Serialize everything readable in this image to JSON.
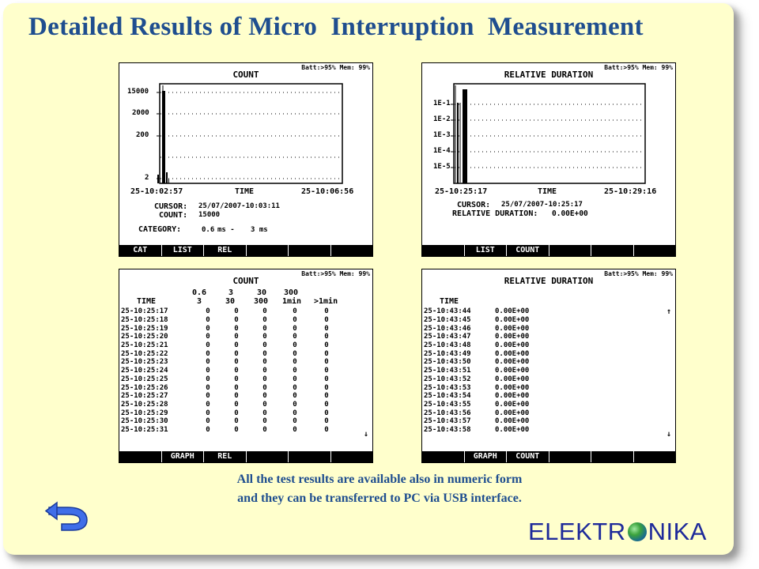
{
  "slide": {
    "title": "Detailed Results of Micro  Interruption  Measurement",
    "caption_line1": "All the test results are available  also in numeric form",
    "caption_line2": "and they can be transferred to PC via USB interface.",
    "logo_left": "ELEKTR",
    "logo_right": "NIKA",
    "back_icon": "back-arrow-icon",
    "colors": {
      "background": "#ffffcc",
      "title": "#1f4e8f",
      "logo": "#1e2a9a"
    }
  },
  "header": "Batt:>95% Mem: 99%",
  "count_graph": {
    "title": "COUNT",
    "y_ticks": [
      "15000",
      "2000",
      "200",
      "2"
    ],
    "x_start": "25-10:02:57",
    "x_mid": "TIME",
    "x_end": "25-10:06:56",
    "cursor_label": "CURSOR:",
    "cursor_value": "25/07/2007-10:03:11",
    "count_label": "COUNT:",
    "count_value": "15000",
    "category_label": "CATEGORY:",
    "category_from": "0.6",
    "category_mid": "ms -",
    "category_to": "3 ms",
    "fkeys": [
      "CAT",
      "LIST",
      "REL",
      "",
      "",
      ""
    ]
  },
  "reldur_graph": {
    "title": "RELATIVE DURATION",
    "y_ticks": [
      "1E-1",
      "1E-2",
      "1E-3",
      "1E-4",
      "1E-5"
    ],
    "x_start": "25-10:25:17",
    "x_mid": "TIME",
    "x_end": "25-10:29:16",
    "cursor_label": "CURSOR:",
    "cursor_value": "25/07/2007-10:25:17",
    "rel_label": "RELATIVE DURATION:",
    "rel_value": "0.00E+00",
    "fkeys": [
      "",
      "LIST",
      "COUNT",
      "",
      "",
      ""
    ]
  },
  "count_list": {
    "title": "COUNT",
    "time_header": "TIME",
    "columns_top": [
      "0.6",
      "3",
      "30",
      "300",
      ""
    ],
    "columns_bottom": [
      "3",
      "30",
      "300",
      "1min",
      ">1min"
    ],
    "rows": [
      [
        "25-10:25:17",
        "0",
        "0",
        "0",
        "0",
        "0"
      ],
      [
        "25-10:25:18",
        "0",
        "0",
        "0",
        "0",
        "0"
      ],
      [
        "25-10:25:19",
        "0",
        "0",
        "0",
        "0",
        "0"
      ],
      [
        "25-10:25:20",
        "0",
        "0",
        "0",
        "0",
        "0"
      ],
      [
        "25-10:25:21",
        "0",
        "0",
        "0",
        "0",
        "0"
      ],
      [
        "25-10:25:22",
        "0",
        "0",
        "0",
        "0",
        "0"
      ],
      [
        "25-10:25:23",
        "0",
        "0",
        "0",
        "0",
        "0"
      ],
      [
        "25-10:25:24",
        "0",
        "0",
        "0",
        "0",
        "0"
      ],
      [
        "25-10:25:25",
        "0",
        "0",
        "0",
        "0",
        "0"
      ],
      [
        "25-10:25:26",
        "0",
        "0",
        "0",
        "0",
        "0"
      ],
      [
        "25-10:25:27",
        "0",
        "0",
        "0",
        "0",
        "0"
      ],
      [
        "25-10:25:28",
        "0",
        "0",
        "0",
        "0",
        "0"
      ],
      [
        "25-10:25:29",
        "0",
        "0",
        "0",
        "0",
        "0"
      ],
      [
        "25-10:25:30",
        "0",
        "0",
        "0",
        "0",
        "0"
      ],
      [
        "25-10:25:31",
        "0",
        "0",
        "0",
        "0",
        "0"
      ]
    ],
    "scroll_down": "↓",
    "fkeys": [
      "",
      "GRAPH",
      "REL",
      "",
      "",
      ""
    ]
  },
  "reldur_list": {
    "title": "RELATIVE DURATION",
    "time_header": "TIME",
    "rows": [
      [
        "25-10:43:44",
        "0.00E+00"
      ],
      [
        "25-10:43:45",
        "0.00E+00"
      ],
      [
        "25-10:43:46",
        "0.00E+00"
      ],
      [
        "25-10:43:47",
        "0.00E+00"
      ],
      [
        "25-10:43:48",
        "0.00E+00"
      ],
      [
        "25-10:43:49",
        "0.00E+00"
      ],
      [
        "25-10:43:50",
        "0.00E+00"
      ],
      [
        "25-10:43:51",
        "0.00E+00"
      ],
      [
        "25-10:43:52",
        "0.00E+00"
      ],
      [
        "25-10:43:53",
        "0.00E+00"
      ],
      [
        "25-10:43:54",
        "0.00E+00"
      ],
      [
        "25-10:43:55",
        "0.00E+00"
      ],
      [
        "25-10:43:56",
        "0.00E+00"
      ],
      [
        "25-10:43:57",
        "0.00E+00"
      ],
      [
        "25-10:43:58",
        "0.00E+00"
      ]
    ],
    "scroll_up": "↑",
    "scroll_down": "↓",
    "fkeys": [
      "",
      "GRAPH",
      "COUNT",
      "",
      "",
      ""
    ]
  }
}
